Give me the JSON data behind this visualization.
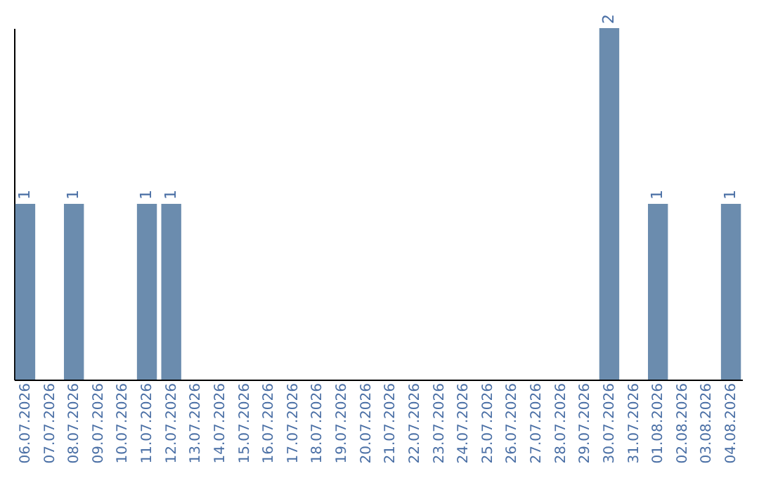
{
  "chart_data": {
    "type": "bar",
    "categories": [
      "06.07.2026",
      "07.07.2026",
      "08.07.2026",
      "09.07.2026",
      "10.07.2026",
      "11.07.2026",
      "12.07.2026",
      "13.07.2026",
      "14.07.2026",
      "15.07.2026",
      "16.07.2026",
      "17.07.2026",
      "18.07.2026",
      "19.07.2026",
      "20.07.2026",
      "21.07.2026",
      "22.07.2026",
      "23.07.2026",
      "24.07.2026",
      "25.07.2026",
      "26.07.2026",
      "27.07.2026",
      "28.07.2026",
      "29.07.2026",
      "30.07.2026",
      "31.07.2026",
      "01.08.2026",
      "02.08.2026",
      "03.08.2026",
      "04.08.2026"
    ],
    "values": [
      1,
      0,
      1,
      0,
      0,
      1,
      1,
      0,
      0,
      0,
      0,
      0,
      0,
      0,
      0,
      0,
      0,
      0,
      0,
      0,
      0,
      0,
      0,
      0,
      2,
      0,
      1,
      0,
      0,
      1
    ],
    "value_labels": [
      "1",
      null,
      "1",
      null,
      null,
      "1",
      "1",
      null,
      null,
      null,
      null,
      null,
      null,
      null,
      null,
      null,
      null,
      null,
      null,
      null,
      null,
      null,
      null,
      null,
      "2",
      null,
      "1",
      null,
      null,
      "1"
    ],
    "color": "#6b8cae",
    "grid": false
  }
}
